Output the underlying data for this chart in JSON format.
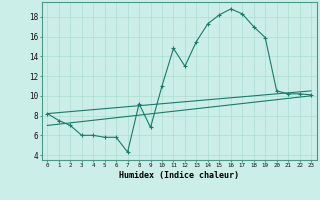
{
  "xlabel": "Humidex (Indice chaleur)",
  "bg_color": "#cceee8",
  "line_color": "#1a7a6a",
  "grid_color": "#aaddcc",
  "xlim": [
    -0.5,
    23.5
  ],
  "ylim": [
    3.5,
    19.5
  ],
  "xticks": [
    0,
    1,
    2,
    3,
    4,
    5,
    6,
    7,
    8,
    9,
    10,
    11,
    12,
    13,
    14,
    15,
    16,
    17,
    18,
    19,
    20,
    21,
    22,
    23
  ],
  "yticks": [
    4,
    6,
    8,
    10,
    12,
    14,
    16,
    18
  ],
  "series1_x": [
    0,
    1,
    2,
    3,
    4,
    5,
    6,
    7,
    8,
    9,
    10,
    11,
    12,
    13,
    14,
    15,
    16,
    17,
    18,
    19,
    20,
    21,
    22,
    23
  ],
  "series1_y": [
    8.2,
    7.5,
    7.0,
    6.0,
    6.0,
    5.8,
    5.8,
    4.3,
    9.2,
    6.8,
    11.0,
    14.8,
    13.0,
    15.5,
    17.3,
    18.2,
    18.8,
    18.3,
    17.0,
    15.9,
    10.5,
    10.2,
    10.2,
    10.1
  ],
  "series2_x": [
    0,
    23
  ],
  "series2_y": [
    8.2,
    10.5
  ],
  "series3_x": [
    0,
    23
  ],
  "series3_y": [
    7.0,
    10.0
  ]
}
